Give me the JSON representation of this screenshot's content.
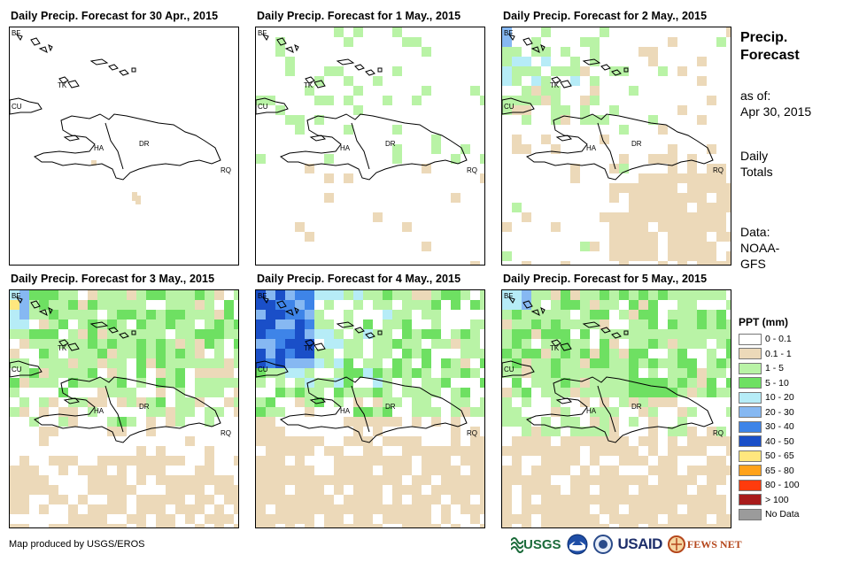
{
  "panels": [
    {
      "title": "Daily Precip. Forecast for 30 Apr., 2015",
      "seed": 11,
      "profile": "day0"
    },
    {
      "title": "Daily Precip. Forecast for 1 May., 2015",
      "seed": 23,
      "profile": "day1"
    },
    {
      "title": "Daily Precip. Forecast for 2 May., 2015",
      "seed": 37,
      "profile": "day2"
    },
    {
      "title": "Daily Precip. Forecast for 3 May., 2015",
      "seed": 41,
      "profile": "day3"
    },
    {
      "title": "Daily Precip. Forecast for 4 May., 2015",
      "seed": 53,
      "profile": "day4"
    },
    {
      "title": "Daily Precip. Forecast for 5 May., 2015",
      "seed": 67,
      "profile": "day5"
    }
  ],
  "map_labels": {
    "bf": "BF",
    "tk": "TK",
    "cu": "CU",
    "ha": "HA",
    "dr": "DR",
    "rq": "RQ"
  },
  "side": {
    "heading_line1": "Precip.",
    "heading_line2": "Forecast",
    "asof_line1": "as of:",
    "asof_line2": "Apr 30, 2015",
    "totals_line1": "Daily",
    "totals_line2": "Totals",
    "data_line1": "Data:",
    "data_line2": "NOAA-",
    "data_line3": "GFS"
  },
  "legend": {
    "title": "PPT (mm)",
    "items": [
      {
        "label": "0 - 0.1",
        "color": "#ffffff"
      },
      {
        "label": "0.1 - 1",
        "color": "#ecd9b9"
      },
      {
        "label": "1 - 5",
        "color": "#b9f3a6"
      },
      {
        "label": "5 - 10",
        "color": "#6ee062"
      },
      {
        "label": "10 - 20",
        "color": "#b6ecf7"
      },
      {
        "label": "20 - 30",
        "color": "#86b8f2"
      },
      {
        "label": "30 - 40",
        "color": "#3e84e8"
      },
      {
        "label": "40 - 50",
        "color": "#1a4fc8"
      },
      {
        "label": "50 - 65",
        "color": "#ffe77e"
      },
      {
        "label": "65 - 80",
        "color": "#ffa21a"
      },
      {
        "label": "80 - 100",
        "color": "#ff3b0d"
      },
      {
        "label": "> 100",
        "color": "#a81b1b"
      },
      {
        "label": "No Data",
        "color": "#9b9b9b"
      }
    ]
  },
  "footer": {
    "credit": "Map produced by USGS/EROS",
    "logos": [
      "USGS",
      "NOAA",
      "USAID",
      "FEWS NET"
    ]
  }
}
